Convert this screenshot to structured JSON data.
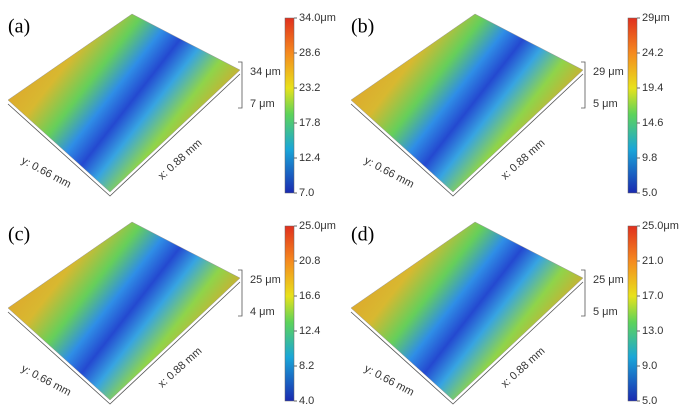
{
  "panels": [
    {
      "label": "(a)",
      "colorbar_ticks": [
        "34.0μm",
        "28.6",
        "23.2",
        "17.8",
        "12.4",
        "7.0"
      ],
      "z_top": "34 μm",
      "z_bottom": "7 μm",
      "y_axis": "y: 0.66 mm",
      "x_axis": "x: 0.88 mm"
    },
    {
      "label": "(b)",
      "colorbar_ticks": [
        "29μm",
        "24.2",
        "19.4",
        "14.6",
        "9.8",
        "5.0"
      ],
      "z_top": "29 μm",
      "z_bottom": "5 μm",
      "y_axis": "y: 0.66 mm",
      "x_axis": "x: 0.88 mm"
    },
    {
      "label": "(c)",
      "colorbar_ticks": [
        "25.0μm",
        "20.8",
        "16.6",
        "12.4",
        "8.2",
        "4.0"
      ],
      "z_top": "25 μm",
      "z_bottom": "4 μm",
      "y_axis": "y: 0.66 mm",
      "x_axis": "x: 0.88 mm"
    },
    {
      "label": "(d)",
      "colorbar_ticks": [
        "25.0μm",
        "21.0",
        "17.0",
        "13.0",
        "9.0",
        "5.0"
      ],
      "z_top": "25 μm",
      "z_bottom": "5 μm",
      "y_axis": "y: 0.66 mm",
      "x_axis": "x: 0.88 mm"
    }
  ]
}
